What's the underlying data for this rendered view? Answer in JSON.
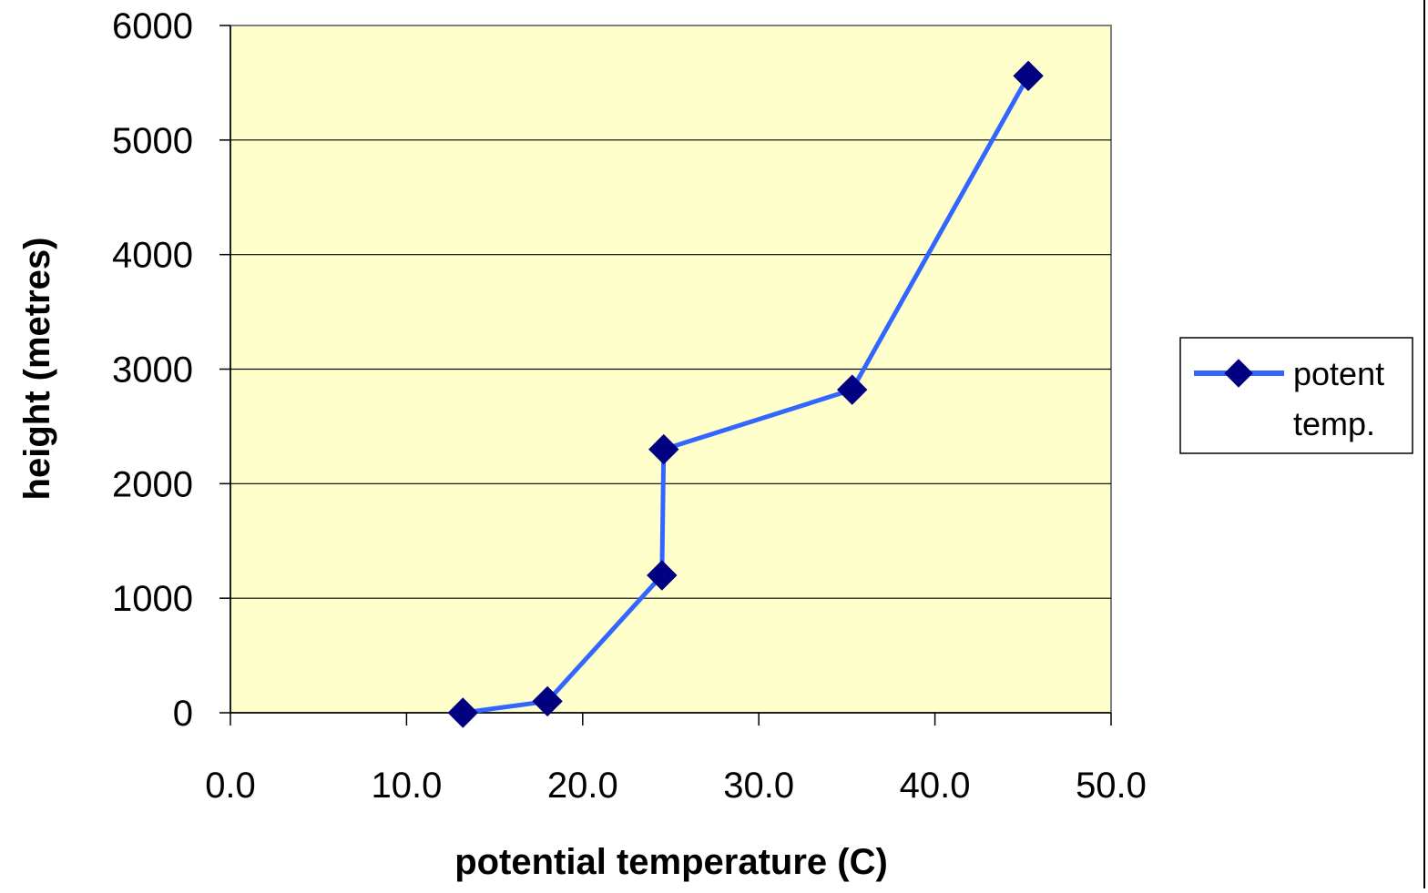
{
  "chart_data": {
    "type": "line",
    "title": "",
    "xlabel": "potential temperature (C)",
    "ylabel": "height (metres)",
    "xlim": [
      0,
      50
    ],
    "ylim": [
      0,
      6000
    ],
    "x_ticks": [
      "0.0",
      "10.0",
      "20.0",
      "30.0",
      "40.0",
      "50.0"
    ],
    "y_ticks": [
      "0",
      "1000",
      "2000",
      "3000",
      "4000",
      "5000",
      "6000"
    ],
    "grid": "horizontal",
    "legend_position": "right",
    "plot_background": "#FFFFCC",
    "series": [
      {
        "name": "potent temp.",
        "line_color": "#3366FF",
        "marker_color": "#000080",
        "marker": "diamond",
        "points": [
          {
            "x": 13.2,
            "y": 0
          },
          {
            "x": 18.0,
            "y": 100
          },
          {
            "x": 24.5,
            "y": 1200
          },
          {
            "x": 24.6,
            "y": 2300
          },
          {
            "x": 35.3,
            "y": 2820
          },
          {
            "x": 45.3,
            "y": 5560
          }
        ]
      }
    ],
    "legend": {
      "line1": "potent",
      "line2": "temp."
    }
  }
}
